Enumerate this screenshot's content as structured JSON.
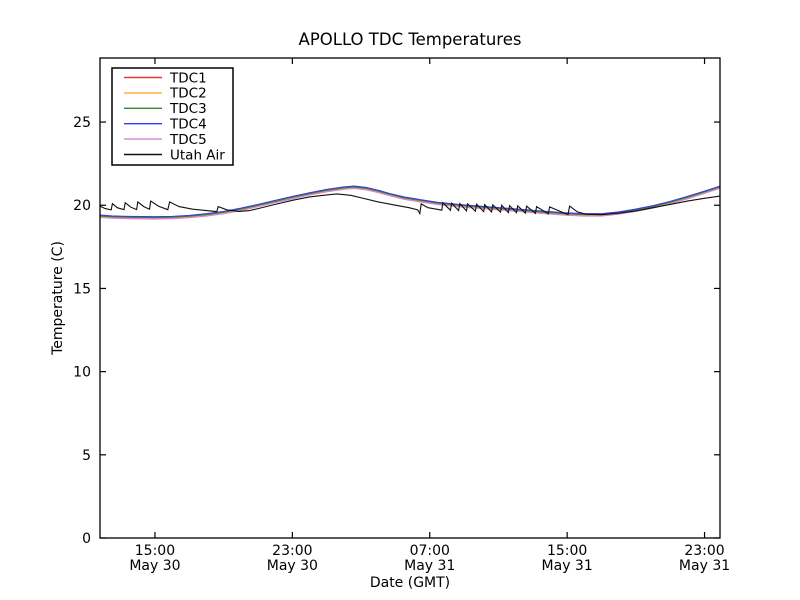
{
  "chart_data": {
    "type": "line",
    "title": "APOLLO TDC Temperatures",
    "xlabel": "Date (GMT)",
    "ylabel": "Temperature (C)",
    "x_unit": "hours since May 30 00:00 GMT",
    "xlim": [
      11.8,
      47.9
    ],
    "ylim": [
      0,
      28.85
    ],
    "grid": false,
    "yticks": [
      0,
      5,
      10,
      15,
      20,
      25
    ],
    "xticks": [
      {
        "pos": 15,
        "time": "15:00",
        "date": "May 30"
      },
      {
        "pos": 23,
        "time": "23:00",
        "date": "May 30"
      },
      {
        "pos": 31,
        "time": "07:00",
        "date": "May 31"
      },
      {
        "pos": 39,
        "time": "15:00",
        "date": "May 31"
      },
      {
        "pos": 47,
        "time": "23:00",
        "date": "May 31"
      }
    ],
    "legend": {
      "position": "upper left",
      "entries": [
        {
          "label": "TDC1",
          "color": "#e03c3c"
        },
        {
          "label": "TDC2",
          "color": "#ffa92e"
        },
        {
          "label": "TDC3",
          "color": "#2f8b2f"
        },
        {
          "label": "TDC4",
          "color": "#3a3ae8"
        },
        {
          "label": "TDC5",
          "color": "#d583d5"
        },
        {
          "label": "Utah Air",
          "color": "#111111"
        }
      ]
    },
    "tdc_base_points": [
      [
        11.8,
        19.36
      ],
      [
        12.5,
        19.31
      ],
      [
        13.5,
        19.28
      ],
      [
        15.0,
        19.26
      ],
      [
        16.0,
        19.28
      ],
      [
        17.0,
        19.34
      ],
      [
        18.0,
        19.44
      ],
      [
        19.0,
        19.58
      ],
      [
        20.0,
        19.77
      ],
      [
        21.0,
        20.0
      ],
      [
        22.0,
        20.24
      ],
      [
        23.0,
        20.48
      ],
      [
        24.0,
        20.7
      ],
      [
        25.0,
        20.9
      ],
      [
        26.0,
        21.05
      ],
      [
        26.6,
        21.1
      ],
      [
        27.3,
        21.02
      ],
      [
        28.0,
        20.85
      ],
      [
        28.7,
        20.65
      ],
      [
        29.5,
        20.45
      ],
      [
        30.5,
        20.28
      ],
      [
        31.5,
        20.12
      ],
      [
        33.0,
        19.97
      ],
      [
        34.5,
        19.85
      ],
      [
        36.0,
        19.73
      ],
      [
        37.5,
        19.6
      ],
      [
        38.8,
        19.5
      ],
      [
        40.0,
        19.44
      ],
      [
        41.0,
        19.44
      ],
      [
        42.0,
        19.55
      ],
      [
        43.0,
        19.72
      ],
      [
        44.0,
        19.92
      ],
      [
        45.0,
        20.18
      ],
      [
        46.0,
        20.48
      ],
      [
        47.0,
        20.8
      ],
      [
        47.9,
        21.1
      ]
    ],
    "series": [
      {
        "name": "TDC1",
        "color": "#e03c3c",
        "base": "tdc",
        "offset": -0.03
      },
      {
        "name": "TDC2",
        "color": "#ffa92e",
        "base": "tdc",
        "offset": -0.06
      },
      {
        "name": "TDC3",
        "color": "#2f8b2f",
        "base": "tdc",
        "offset": 0.0
      },
      {
        "name": "TDC4",
        "color": "#3a3ae8",
        "base": "tdc",
        "offset": 0.05
      },
      {
        "name": "TDC5",
        "color": "#d583d5",
        "base": "tdc",
        "offset": -0.09
      },
      {
        "name": "Utah Air",
        "color": "#111111",
        "points": [
          [
            11.8,
            19.95
          ],
          [
            12.1,
            19.8
          ],
          [
            12.45,
            19.72
          ],
          [
            12.52,
            20.1
          ],
          [
            12.8,
            19.85
          ],
          [
            13.2,
            19.73
          ],
          [
            13.27,
            20.15
          ],
          [
            13.6,
            19.88
          ],
          [
            13.93,
            19.74
          ],
          [
            14.0,
            20.2
          ],
          [
            14.35,
            19.92
          ],
          [
            14.68,
            19.76
          ],
          [
            14.75,
            20.25
          ],
          [
            15.2,
            19.95
          ],
          [
            15.75,
            19.73
          ],
          [
            15.85,
            20.2
          ],
          [
            16.4,
            19.92
          ],
          [
            17.2,
            19.76
          ],
          [
            18.0,
            19.68
          ],
          [
            18.6,
            19.62
          ],
          [
            18.68,
            19.92
          ],
          [
            19.2,
            19.72
          ],
          [
            19.9,
            19.63
          ],
          [
            20.5,
            19.68
          ],
          [
            21.0,
            19.8
          ],
          [
            22.0,
            20.05
          ],
          [
            23.0,
            20.3
          ],
          [
            24.0,
            20.5
          ],
          [
            25.0,
            20.62
          ],
          [
            25.6,
            20.68
          ],
          [
            26.4,
            20.6
          ],
          [
            27.2,
            20.4
          ],
          [
            28.0,
            20.2
          ],
          [
            29.0,
            20.0
          ],
          [
            29.8,
            19.85
          ],
          [
            30.3,
            19.72
          ],
          [
            30.42,
            19.5
          ],
          [
            30.5,
            20.08
          ],
          [
            30.9,
            19.85
          ],
          [
            31.4,
            19.76
          ],
          [
            31.7,
            19.7
          ],
          [
            31.76,
            20.15
          ],
          [
            32.2,
            19.7
          ],
          [
            32.28,
            20.12
          ],
          [
            32.68,
            19.68
          ],
          [
            32.75,
            20.1
          ],
          [
            33.14,
            19.66
          ],
          [
            33.2,
            20.08
          ],
          [
            33.66,
            19.64
          ],
          [
            33.73,
            20.06
          ],
          [
            34.14,
            19.62
          ],
          [
            34.2,
            20.04
          ],
          [
            34.6,
            19.6
          ],
          [
            34.67,
            20.02
          ],
          [
            35.12,
            19.58
          ],
          [
            35.19,
            20.0
          ],
          [
            35.58,
            19.56
          ],
          [
            35.65,
            19.98
          ],
          [
            36.05,
            19.55
          ],
          [
            36.12,
            19.96
          ],
          [
            36.57,
            19.53
          ],
          [
            36.64,
            19.94
          ],
          [
            37.15,
            19.51
          ],
          [
            37.22,
            19.92
          ],
          [
            37.9,
            19.48
          ],
          [
            37.98,
            19.9
          ],
          [
            39.05,
            19.44
          ],
          [
            39.14,
            19.95
          ],
          [
            39.6,
            19.6
          ],
          [
            40.1,
            19.46
          ],
          [
            41.0,
            19.43
          ],
          [
            42.0,
            19.52
          ],
          [
            43.0,
            19.66
          ],
          [
            44.0,
            19.85
          ],
          [
            45.0,
            20.05
          ],
          [
            46.0,
            20.25
          ],
          [
            47.0,
            20.42
          ],
          [
            47.9,
            20.55
          ]
        ]
      }
    ]
  }
}
